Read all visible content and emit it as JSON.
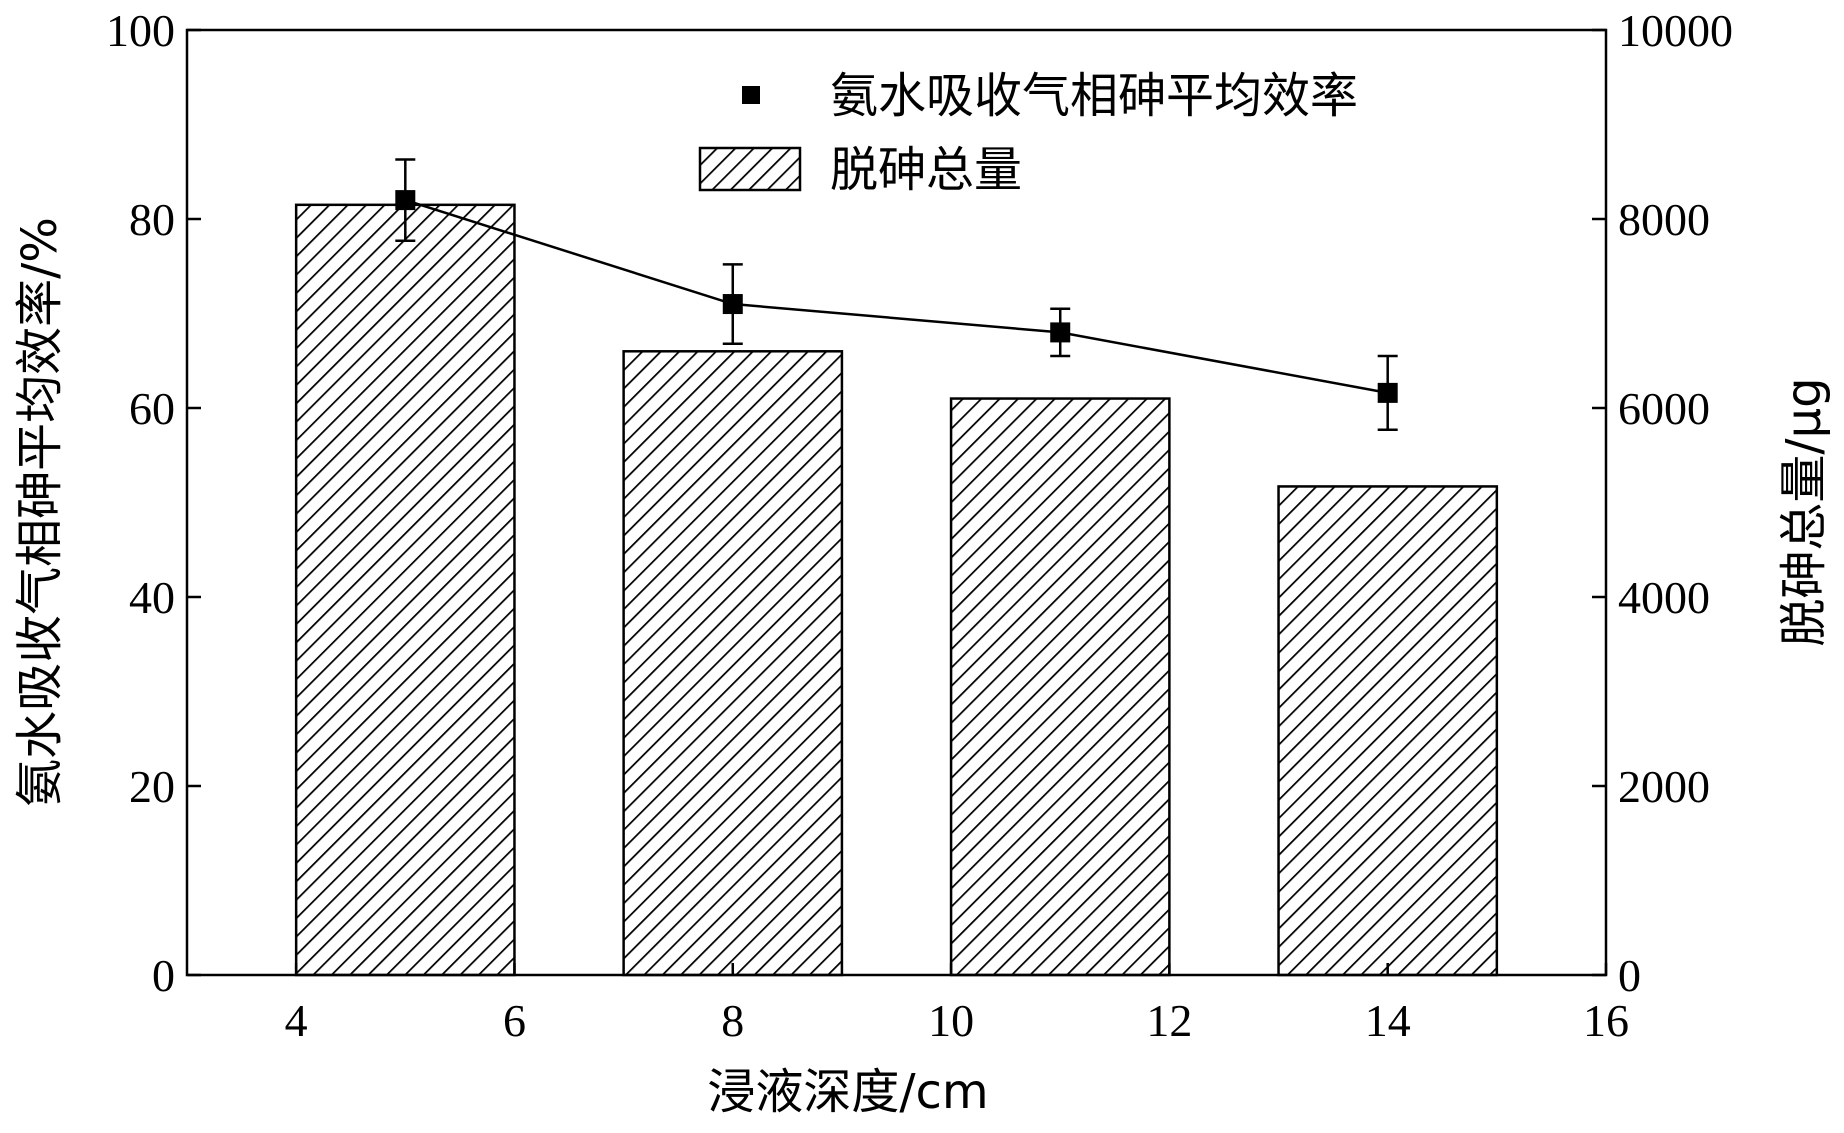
{
  "chart_data": {
    "type": "bar",
    "title": "",
    "xlabel": "浸液深度/cm",
    "ylabel_left": "氨水吸收气相砷平均效率/%",
    "ylabel_right": "脱砷总量/μg",
    "xlim": [
      3,
      16
    ],
    "ylim_left": [
      0,
      100
    ],
    "ylim_right": [
      0,
      10000
    ],
    "x_ticks": [
      "4",
      "6",
      "8",
      "10",
      "12",
      "14",
      "16"
    ],
    "y_left_ticks": [
      "0",
      "20",
      "40",
      "60",
      "80",
      "100"
    ],
    "y_right_ticks": [
      "0",
      "2000",
      "4000",
      "6000",
      "8000",
      "10000"
    ],
    "legend_position": "top-right",
    "grid": false,
    "series": [
      {
        "name": "脱砷总量",
        "type": "bar",
        "axis": "right",
        "pattern": "diagonal-hatch",
        "bars": [
          {
            "x_start": 4,
            "x_end": 6,
            "value": 8150
          },
          {
            "x_start": 7,
            "x_end": 9,
            "value": 6600
          },
          {
            "x_start": 10,
            "x_end": 12,
            "value": 6100
          },
          {
            "x_start": 13,
            "x_end": 15,
            "value": 5170
          }
        ]
      },
      {
        "name": "氨水吸收气相砷平均效率",
        "type": "line",
        "axis": "left",
        "marker": "square",
        "points": [
          {
            "x": 5,
            "y": 82,
            "err": 4.3
          },
          {
            "x": 8,
            "y": 71,
            "err": 4.2
          },
          {
            "x": 11,
            "y": 68,
            "err": 2.5
          },
          {
            "x": 14,
            "y": 61.6,
            "err": 3.9
          }
        ]
      }
    ]
  }
}
